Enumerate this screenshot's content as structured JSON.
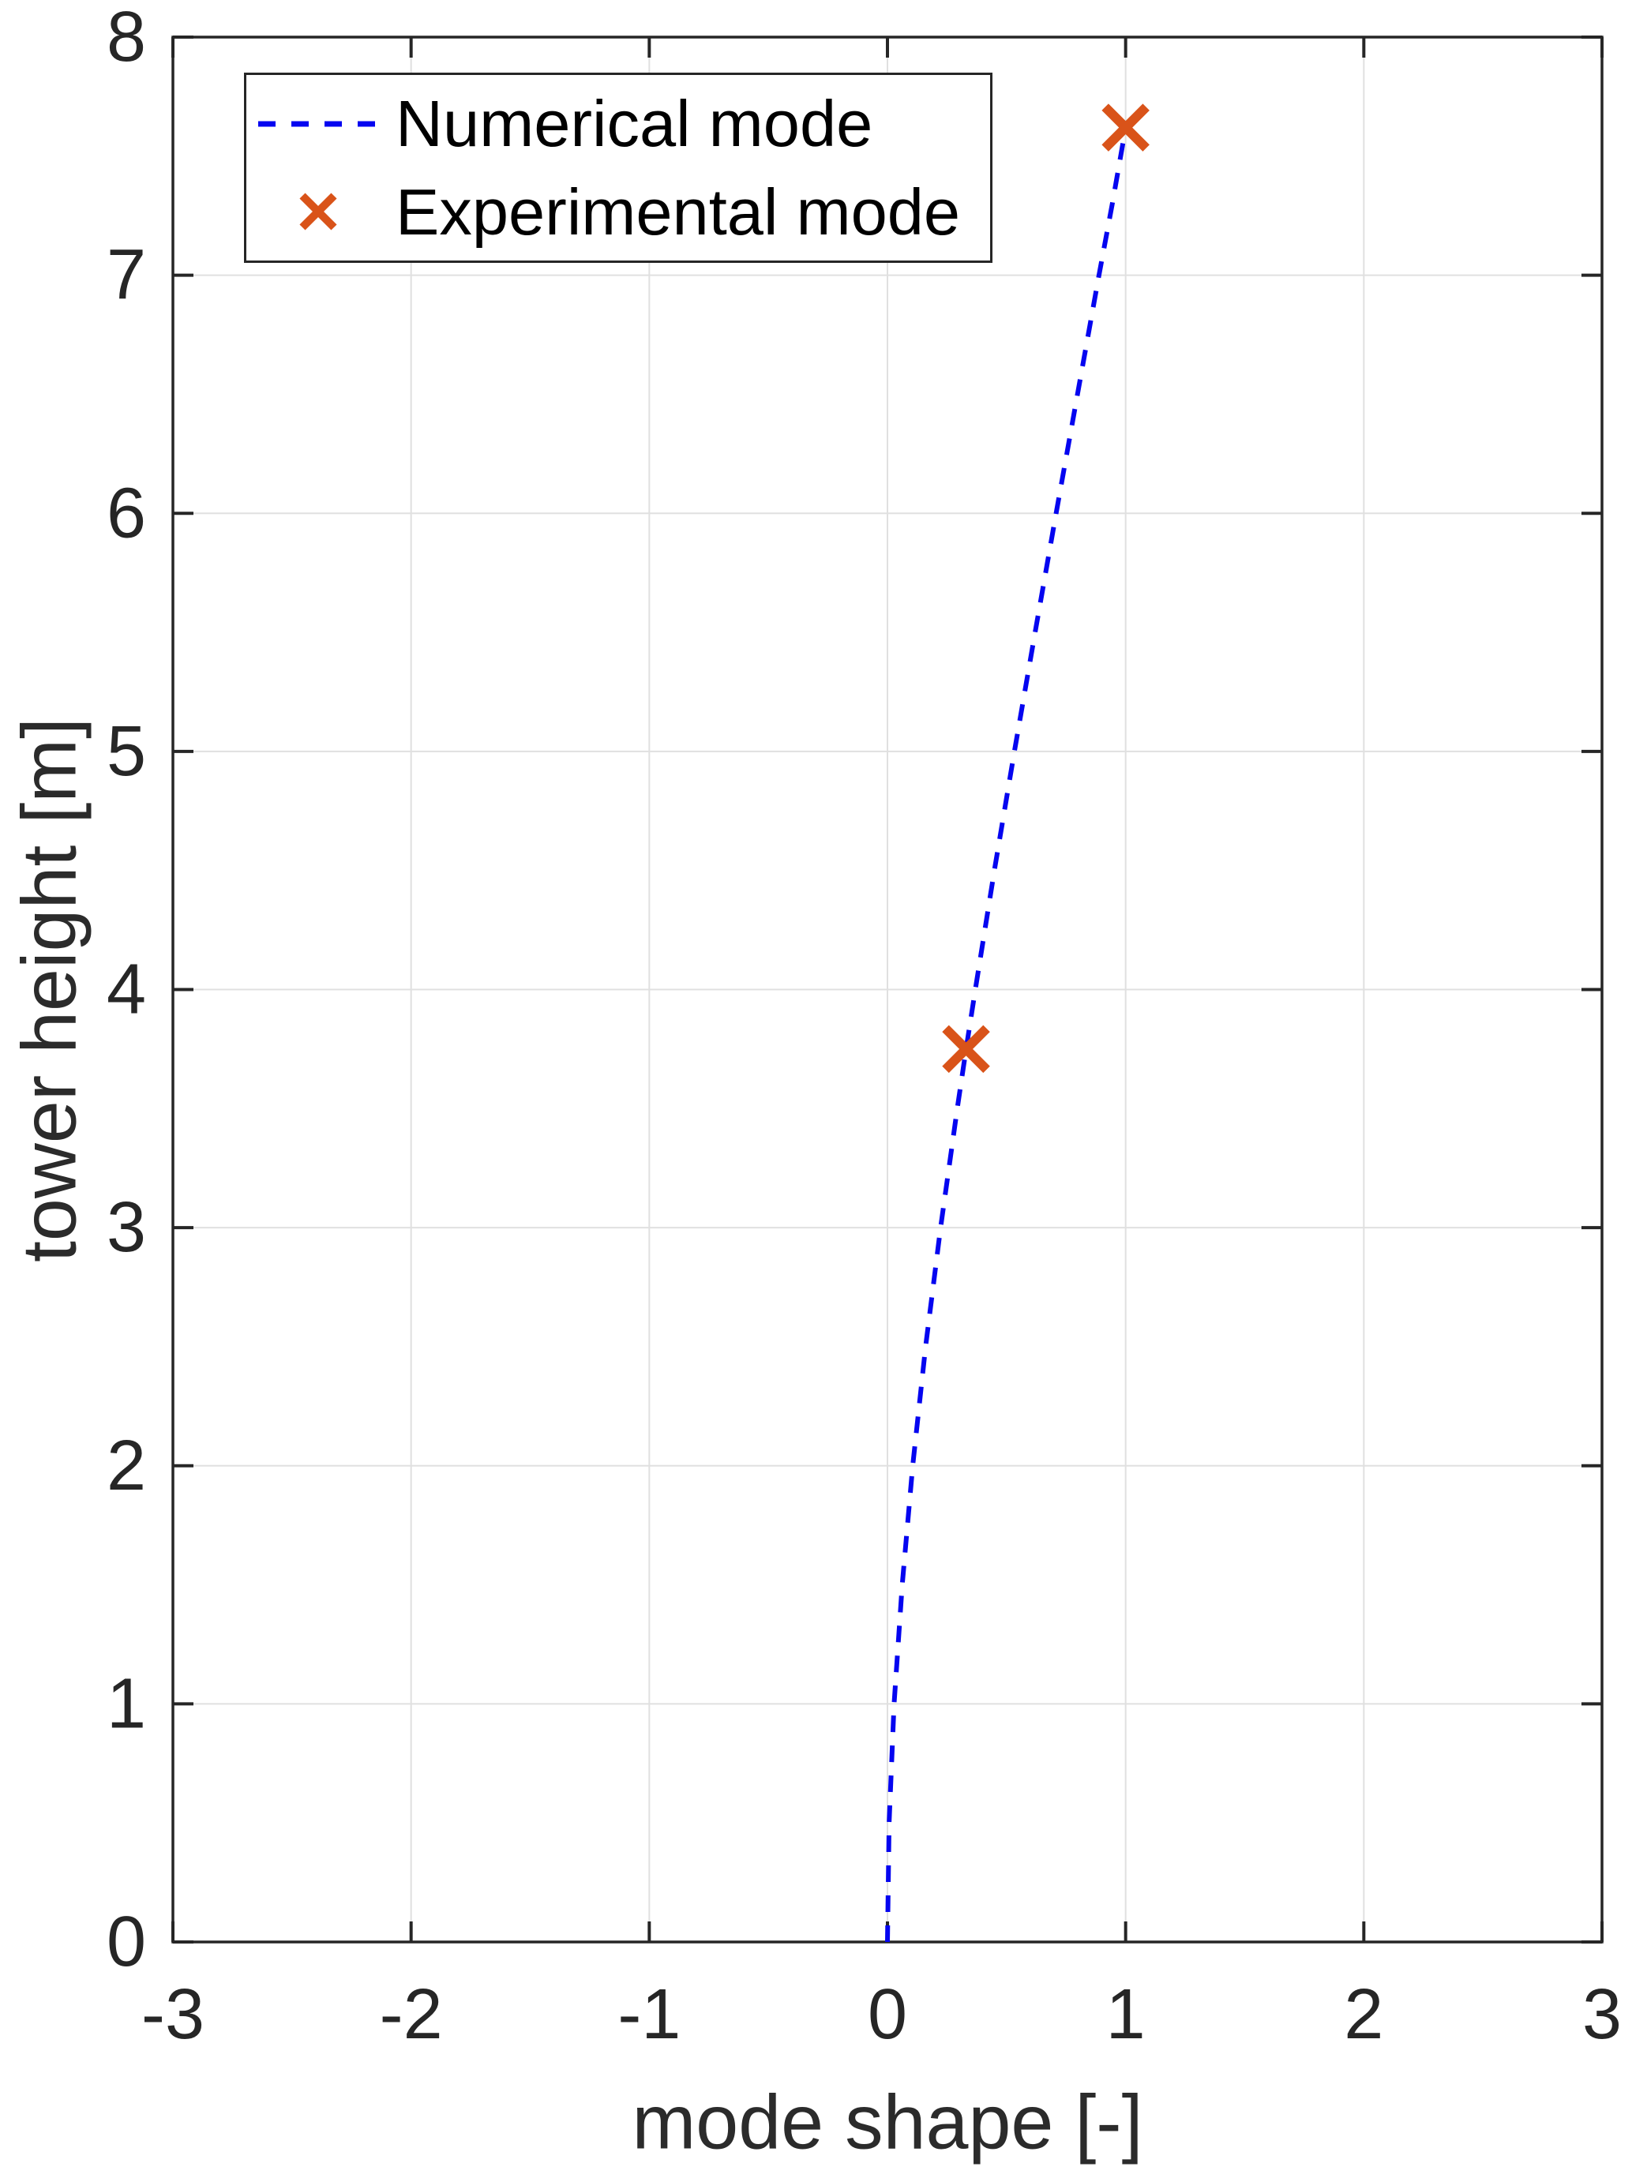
{
  "figure": {
    "background": "#ffffff"
  },
  "legend": {
    "position": "top-left",
    "entries": [
      {
        "label": "Numerical mode",
        "swatch": "dashed-line",
        "color": "#0505f0"
      },
      {
        "label": "Experimental mode",
        "swatch": "x-marker",
        "color": "#d95319"
      }
    ]
  },
  "chart_data": {
    "type": "line",
    "title": "",
    "xlabel": "mode shape [-]",
    "ylabel": "tower height [m]",
    "xlim": [
      -3,
      3
    ],
    "ylim": [
      0,
      8
    ],
    "xticks": [
      -3,
      -2,
      -1,
      0,
      1,
      2,
      3
    ],
    "yticks": [
      0,
      1,
      2,
      3,
      4,
      5,
      6,
      7,
      8
    ],
    "grid": true,
    "legend_position": "top-left",
    "colors": {
      "grid": "#e0e0e0",
      "axis": "#262626",
      "numerical": "#0505f0",
      "experimental": "#d95319"
    },
    "series": [
      {
        "name": "Numerical mode",
        "type": "line",
        "line_style": "dashed",
        "color": "#0505f0",
        "points": [
          [
            0,
            0
          ],
          [
            0.007,
            0.5
          ],
          [
            0.028,
            1.0
          ],
          [
            0.062,
            1.5
          ],
          [
            0.106,
            2.0
          ],
          [
            0.16,
            2.5
          ],
          [
            0.223,
            3.0
          ],
          [
            0.293,
            3.5
          ],
          [
            0.33,
            3.75
          ],
          [
            0.369,
            4.0
          ],
          [
            0.449,
            4.5
          ],
          [
            0.533,
            5.0
          ],
          [
            0.62,
            5.5
          ],
          [
            0.708,
            6.0
          ],
          [
            0.798,
            6.5
          ],
          [
            0.888,
            7.0
          ],
          [
            0.944,
            7.3
          ],
          [
            1.0,
            7.62
          ]
        ]
      },
      {
        "name": "Experimental mode",
        "type": "scatter",
        "marker": "x",
        "color": "#d95319",
        "points": [
          [
            0.33,
            3.75
          ],
          [
            1.0,
            7.62
          ]
        ]
      }
    ]
  }
}
